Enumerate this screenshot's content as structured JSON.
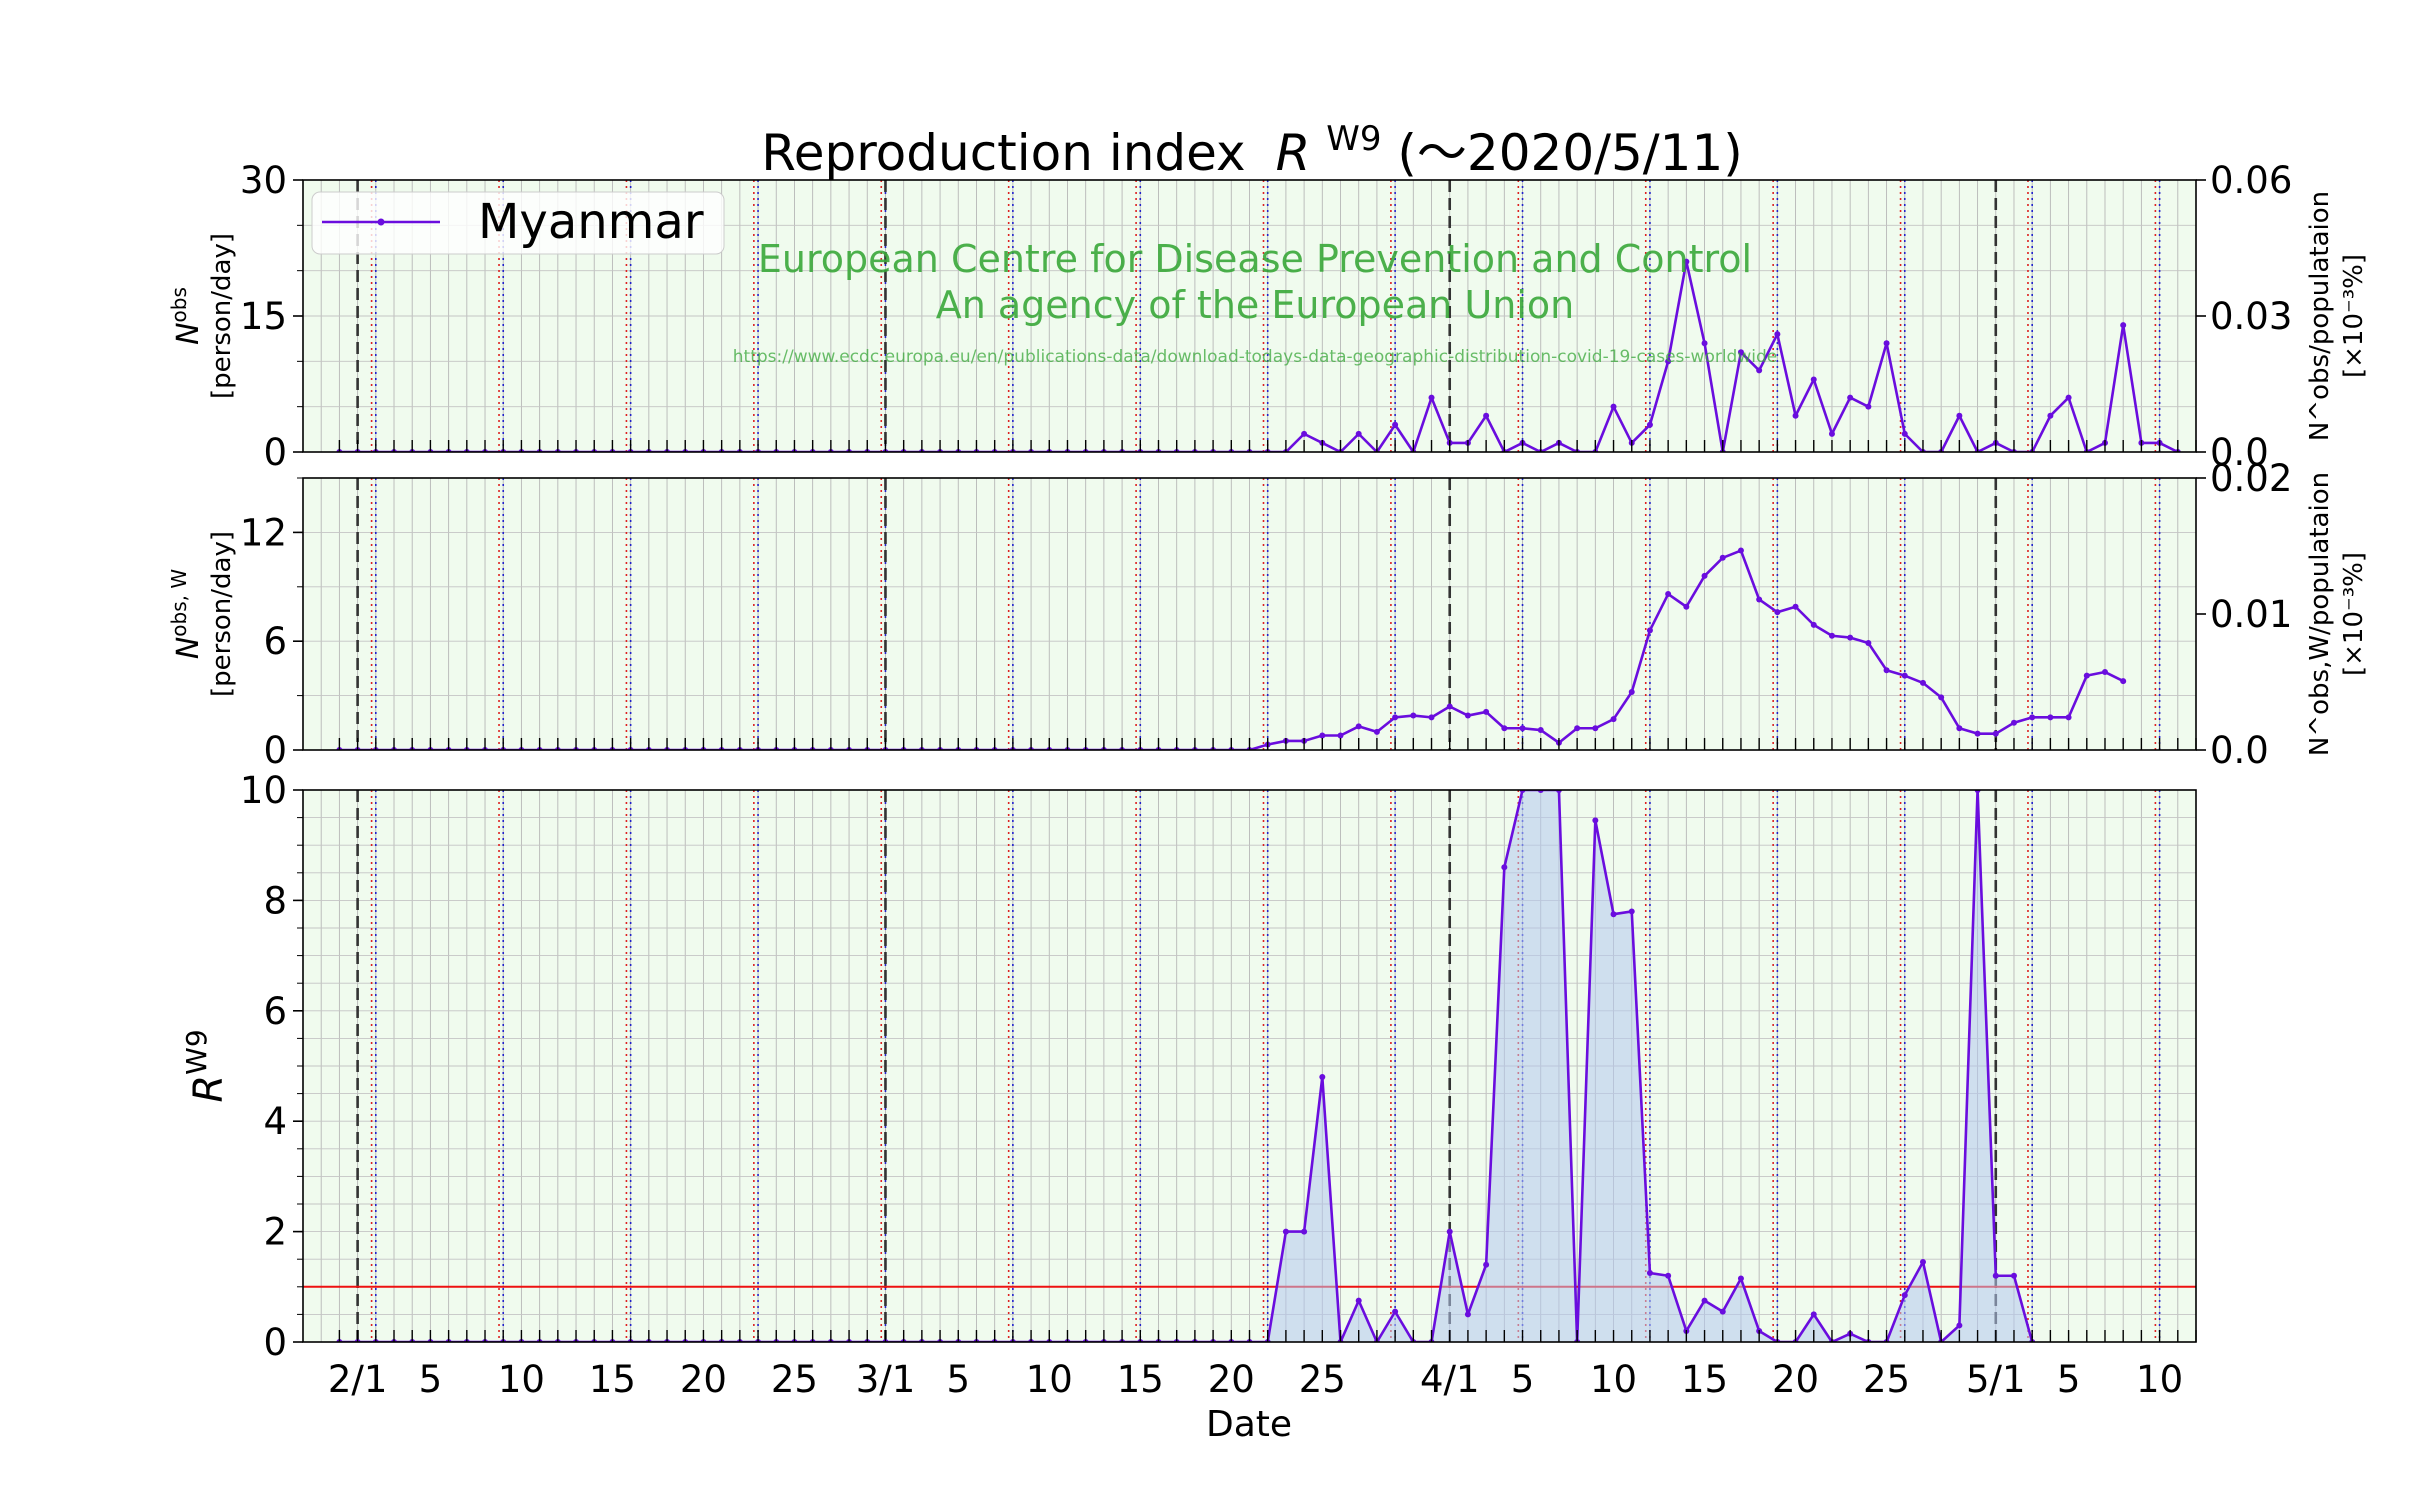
{
  "chart_data": {
    "type": "line",
    "title": "Reproduction index",
    "title_symbol": "R",
    "title_superscript": "W9",
    "title_suffix": "(～2020/5/11)",
    "xlabel": "Date",
    "start_date": "2020-01-31",
    "n_days": 103,
    "xlim_days": [
      -2,
      102
    ],
    "x_tick_labels": [
      {
        "day": 1,
        "label": "2/1"
      },
      {
        "day": 5,
        "label": "5"
      },
      {
        "day": 10,
        "label": "10"
      },
      {
        "day": 15,
        "label": "15"
      },
      {
        "day": 20,
        "label": "20"
      },
      {
        "day": 25,
        "label": "25"
      },
      {
        "day": 30,
        "label": "3/1"
      },
      {
        "day": 34,
        "label": "5"
      },
      {
        "day": 39,
        "label": "10"
      },
      {
        "day": 44,
        "label": "15"
      },
      {
        "day": 49,
        "label": "20"
      },
      {
        "day": 54,
        "label": "25"
      },
      {
        "day": 61,
        "label": "4/1"
      },
      {
        "day": 65,
        "label": "5"
      },
      {
        "day": 70,
        "label": "10"
      },
      {
        "day": 75,
        "label": "15"
      },
      {
        "day": 80,
        "label": "20"
      },
      {
        "day": 85,
        "label": "25"
      },
      {
        "day": 91,
        "label": "5/1"
      },
      {
        "day": 95,
        "label": "5"
      },
      {
        "day": 100,
        "label": "10"
      }
    ],
    "month_lines_days": [
      1,
      30,
      61,
      91
    ],
    "sunday_lines_days": [
      2,
      9,
      16,
      23,
      30,
      37,
      44,
      51,
      58,
      65,
      72,
      79,
      86,
      93,
      100
    ],
    "saturday_lines_days": [
      1,
      8,
      15,
      22,
      29,
      36,
      43,
      50,
      57,
      64,
      71,
      78,
      85,
      92,
      99
    ],
    "legend": {
      "label": "Myanmar",
      "position": "top-left"
    },
    "series_color": "#6a0dde",
    "watermark": {
      "line1": "European Centre for Disease Prevention and Control",
      "line2": "An agency of the European Union",
      "url": "https://www.ecdc.europa.eu/en/publications-data/download-todays-data-geographic-distribution-covid-19-cases-worldwide",
      "color": "#3aa83a"
    },
    "panels": [
      {
        "name": "daily-observed",
        "ylabel_symbol": "N",
        "ylabel_sup": "obs",
        "ylabel_unit": "[person/day]",
        "ylim": [
          0,
          30
        ],
        "yticks": [
          0,
          15,
          30
        ],
        "right_ylabel_line1": "N^obs/populataion",
        "right_ylabel_line2": "[×10⁻³%]",
        "right_yticks": [
          "0.0",
          "0.03",
          "0.06"
        ],
        "values": [
          0,
          0,
          0,
          0,
          0,
          0,
          0,
          0,
          0,
          0,
          0,
          0,
          0,
          0,
          0,
          0,
          0,
          0,
          0,
          0,
          0,
          0,
          0,
          0,
          0,
          0,
          0,
          0,
          0,
          0,
          0,
          0,
          0,
          0,
          0,
          0,
          0,
          0,
          0,
          0,
          0,
          0,
          0,
          0,
          0,
          0,
          0,
          0,
          0,
          0,
          0,
          0,
          0,
          2,
          1,
          0,
          2,
          0,
          3,
          0,
          6,
          1,
          1,
          4,
          0,
          1,
          0,
          1,
          0,
          0,
          5,
          1,
          3,
          10,
          21,
          12,
          0,
          11,
          9,
          13,
          4,
          8,
          2,
          6,
          5,
          12,
          2,
          0,
          0,
          4,
          0,
          1,
          0,
          0,
          4,
          6,
          0,
          1,
          14,
          1,
          1,
          0
        ]
      },
      {
        "name": "weekly-average",
        "ylabel_symbol": "N",
        "ylabel_sup": "obs, W",
        "ylabel_unit": "[person/day]",
        "ylim": [
          0,
          15
        ],
        "yticks": [
          0,
          6,
          12
        ],
        "right_ylabel_line1": "N^obs,W/populataion",
        "right_ylabel_line2": "[×10⁻³%]",
        "right_yticks": [
          "0.0",
          "0.01",
          "0.02"
        ],
        "values": [
          0,
          0,
          0,
          0,
          0,
          0,
          0,
          0,
          0,
          0,
          0,
          0,
          0,
          0,
          0,
          0,
          0,
          0,
          0,
          0,
          0,
          0,
          0,
          0,
          0,
          0,
          0,
          0,
          0,
          0,
          0,
          0,
          0,
          0,
          0,
          0,
          0,
          0,
          0,
          0,
          0,
          0,
          0,
          0,
          0,
          0,
          0,
          0,
          0,
          0,
          0,
          0.3,
          0.5,
          0.5,
          0.8,
          0.8,
          1.3,
          1.0,
          1.8,
          1.9,
          1.8,
          2.4,
          1.9,
          2.1,
          1.2,
          1.2,
          1.1,
          0.4,
          1.2,
          1.2,
          1.7,
          3.2,
          6.6,
          8.6,
          7.9,
          9.6,
          10.6,
          11.0,
          8.3,
          7.6,
          7.9,
          6.9,
          6.3,
          6.2,
          5.9,
          4.4,
          4.1,
          3.7,
          2.9,
          1.2,
          0.9,
          0.9,
          1.5,
          1.8,
          1.8,
          1.8,
          4.1,
          4.3,
          3.8
        ]
      },
      {
        "name": "reproduction-index",
        "ylabel_symbol": "R",
        "ylabel_sup": "W9",
        "ylim": [
          0,
          10
        ],
        "yticks": [
          0,
          2,
          4,
          6,
          8,
          10
        ],
        "reference_line": 1,
        "values": [
          0,
          0,
          0,
          0,
          0,
          0,
          0,
          0,
          0,
          0,
          0,
          0,
          0,
          0,
          0,
          0,
          0,
          0,
          0,
          0,
          0,
          0,
          0,
          0,
          0,
          0,
          0,
          0,
          0,
          0,
          0,
          0,
          0,
          0,
          0,
          0,
          0,
          0,
          0,
          0,
          0,
          0,
          0,
          0,
          0,
          0,
          0,
          0,
          0,
          0,
          0,
          0,
          2.0,
          2.0,
          4.8,
          0,
          0.75,
          0,
          0.55,
          0,
          0,
          2.0,
          0.5,
          1.4,
          8.6,
          10,
          10,
          10,
          0,
          9.45,
          7.75,
          7.8,
          1.25,
          1.2,
          0.2,
          0.75,
          0.55,
          1.15,
          0.2,
          0,
          0,
          0.5,
          0,
          0.15,
          0,
          0,
          0.85,
          1.45,
          0,
          0.3,
          10,
          1.2,
          1.2,
          0
        ]
      }
    ]
  }
}
